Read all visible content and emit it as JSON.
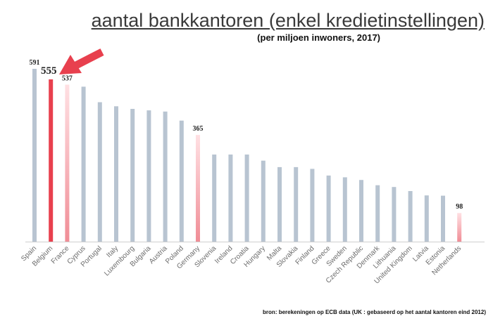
{
  "title": "aantal bankkantoren (enkel kredietinstellingen)",
  "subtitle": "(per miljoen inwoners, 2017)",
  "source": "bron: berekeningen op ECB data (UK : gebaseerd op het aantal kantoren eind 2012)",
  "colors": {
    "default_bar": "#b8c4d1",
    "highlight_bar": "#e8404e",
    "highlight_light_top": "#ffe0e3",
    "highlight_light_bottom": "#f08d96",
    "arrow": "#e8404e",
    "axis": "#d0d0d0"
  },
  "chart_data": {
    "type": "bar",
    "categories": [
      "Spain",
      "Belgium",
      "France",
      "Cyprus",
      "Portugal",
      "Italy",
      "Luxembourg",
      "Bulgaria",
      "Austria",
      "Poland",
      "Germany",
      "Slovenia",
      "Ireland",
      "Croatia",
      "Hungary",
      "Malta",
      "Slovakia",
      "Finland",
      "Greece",
      "Sweden",
      "Czech Republic",
      "Denmark",
      "Lithuania",
      "United Kingdom",
      "Latvia",
      "Estonia",
      "Netherlands"
    ],
    "values": [
      591,
      555,
      537,
      530,
      477,
      463,
      454,
      449,
      445,
      414,
      365,
      298,
      298,
      298,
      277,
      255,
      255,
      249,
      226,
      220,
      211,
      193,
      187,
      173,
      158,
      157,
      98
    ],
    "data_labels": [
      {
        "category": "Spain",
        "text": "591"
      },
      {
        "category": "Belgium",
        "text": "555"
      },
      {
        "category": "France",
        "text": "537"
      },
      {
        "category": "Germany",
        "text": "365"
      },
      {
        "category": "Netherlands",
        "text": "98"
      }
    ],
    "highlight": {
      "Belgium": "strong",
      "France": "light",
      "Germany": "light",
      "Netherlands": "light"
    },
    "ylim": [
      0,
      620
    ],
    "grid": false,
    "legend": "none"
  }
}
